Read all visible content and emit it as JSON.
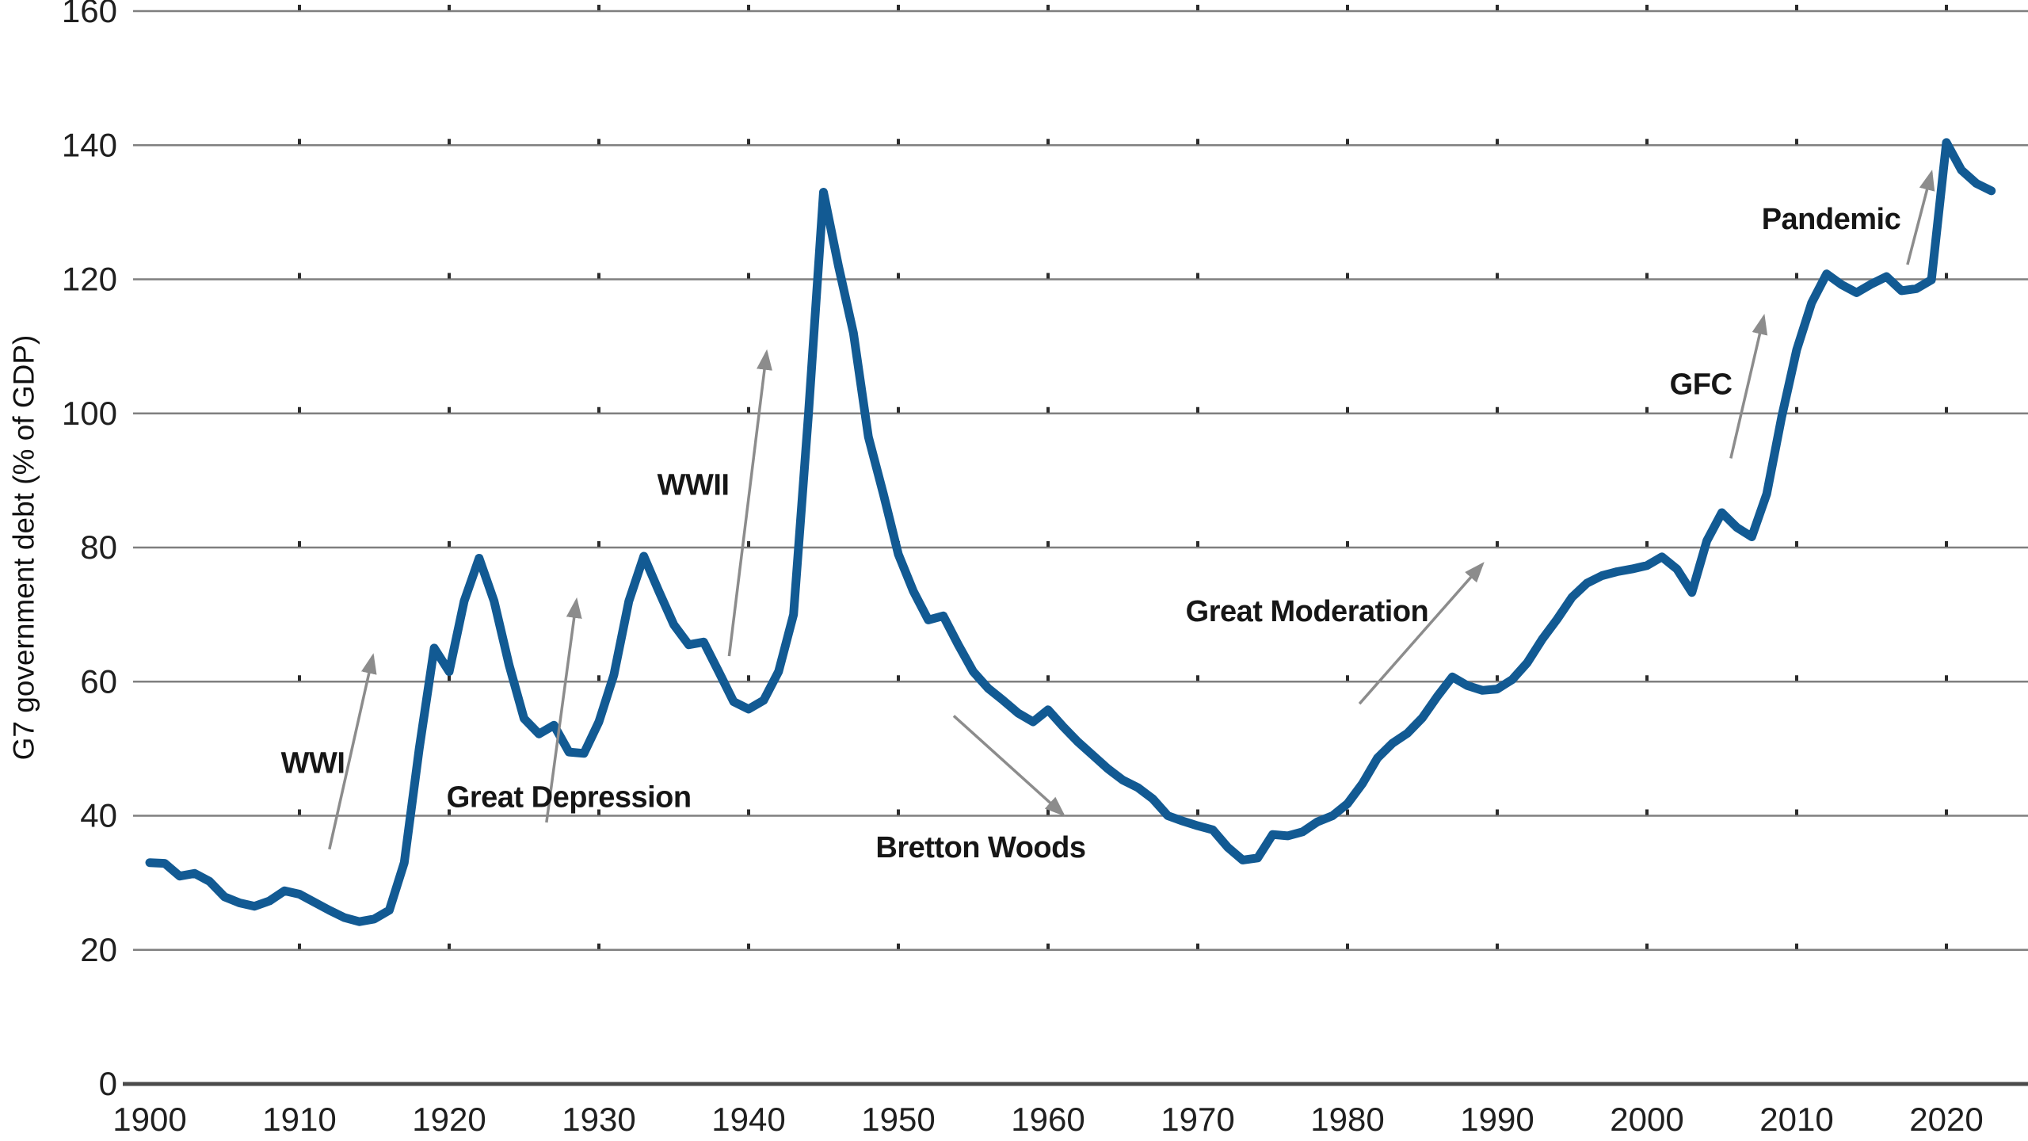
{
  "chart_data": {
    "type": "line",
    "title": "",
    "xlabel": "",
    "ylabel": "G7 government debt (% of GDP)",
    "legend": "none",
    "grid": true,
    "ylim": [
      0,
      160
    ],
    "yticks": [
      0,
      20,
      40,
      60,
      80,
      100,
      120,
      140,
      160
    ],
    "xticks": [
      1900,
      1910,
      1920,
      1930,
      1940,
      1950,
      1960,
      1970,
      1980,
      1990,
      2000,
      2010,
      2020
    ],
    "series": [
      {
        "name": "G7 government debt (% of GDP)",
        "color": "#125a93"
      }
    ],
    "x": [
      1900,
      1901,
      1902,
      1903,
      1904,
      1905,
      1906,
      1907,
      1908,
      1909,
      1910,
      1911,
      1912,
      1913,
      1914,
      1915,
      1916,
      1917,
      1918,
      1919,
      1920,
      1921,
      1922,
      1923,
      1924,
      1925,
      1926,
      1927,
      1928,
      1929,
      1930,
      1931,
      1932,
      1933,
      1934,
      1935,
      1936,
      1937,
      1938,
      1939,
      1940,
      1941,
      1942,
      1943,
      1944,
      1945,
      1946,
      1947,
      1948,
      1949,
      1950,
      1951,
      1952,
      1953,
      1954,
      1955,
      1956,
      1957,
      1958,
      1959,
      1960,
      1961,
      1962,
      1963,
      1964,
      1965,
      1966,
      1967,
      1968,
      1969,
      1970,
      1971,
      1972,
      1973,
      1974,
      1975,
      1976,
      1977,
      1978,
      1979,
      1980,
      1981,
      1982,
      1983,
      1984,
      1985,
      1986,
      1987,
      1988,
      1989,
      1990,
      1991,
      1992,
      1993,
      1994,
      1995,
      1996,
      1997,
      1998,
      1999,
      2000,
      2001,
      2002,
      2003,
      2004,
      2005,
      2006,
      2007,
      2008,
      2009,
      2010,
      2011,
      2012,
      2013,
      2014,
      2015,
      2016,
      2017,
      2018,
      2019,
      2020,
      2021,
      2022,
      2023
    ],
    "values": [
      33.0,
      32.9,
      31.0,
      31.4,
      30.2,
      27.9,
      27.0,
      26.5,
      27.3,
      28.8,
      28.3,
      27.1,
      25.9,
      24.8,
      24.2,
      24.6,
      25.9,
      33.0,
      50.0,
      65.0,
      61.5,
      72.0,
      78.4,
      72.0,
      62.5,
      54.5,
      52.2,
      53.5,
      49.5,
      49.3,
      54.0,
      61.0,
      72.0,
      78.7,
      73.5,
      68.5,
      65.5,
      65.9,
      61.5,
      57.0,
      55.9,
      57.2,
      61.5,
      70.0,
      100.0,
      133.0,
      122.0,
      112.0,
      96.5,
      88.0,
      79.0,
      73.5,
      69.2,
      69.8,
      65.5,
      61.5,
      59.0,
      57.2,
      55.3,
      54.0,
      55.8,
      53.3,
      51.0,
      49.0,
      47.0,
      45.3,
      44.2,
      42.5,
      40.0,
      39.2,
      38.5,
      37.9,
      35.3,
      33.4,
      33.7,
      37.2,
      37.0,
      37.6,
      39.1,
      40.0,
      41.8,
      44.8,
      48.6,
      50.8,
      52.3,
      54.6,
      57.8,
      60.7,
      59.4,
      58.7,
      58.9,
      60.3,
      62.8,
      66.3,
      69.3,
      72.6,
      74.7,
      75.8,
      76.4,
      76.8,
      77.3,
      78.6,
      76.8,
      73.3,
      81.0,
      85.2,
      83.0,
      81.6,
      88.0,
      99.5,
      109.5,
      116.5,
      120.8,
      119.2,
      118.0,
      119.3,
      120.4,
      118.3,
      118.6,
      119.9,
      140.4,
      136.3,
      134.3,
      133.2
    ],
    "colors": {
      "line": "#125a93",
      "grid": "#7f7f7f",
      "axis": "#4a4a4a",
      "text": "#1f1f1f",
      "annotation": "#161616",
      "arrow": "#8c8c8c",
      "tick_dot": "#2b2b2b",
      "background": "#ffffff"
    },
    "annotations": [
      {
        "label": "WWI",
        "year": 1910.9,
        "value": 47.8,
        "arrow": {
          "from": {
            "year": 1912.0,
            "value": 35.0
          },
          "to": {
            "year": 1914.9,
            "value": 63.8
          }
        }
      },
      {
        "label": "Great Depression",
        "year": 1928.0,
        "value": 42.7,
        "arrow": {
          "from": {
            "year": 1926.5,
            "value": 39.0
          },
          "to": {
            "year": 1928.5,
            "value": 72.1
          }
        }
      },
      {
        "label": "WWII",
        "year": 1936.3,
        "value": 89.3,
        "arrow": {
          "from": {
            "year": 1938.7,
            "value": 63.8
          },
          "to": {
            "year": 1941.2,
            "value": 109.1
          }
        }
      },
      {
        "label": "Bretton Woods",
        "year": 1955.5,
        "value": 35.2,
        "arrow": {
          "from": {
            "year": 1953.7,
            "value": 54.9
          },
          "to": {
            "year": 1961.0,
            "value": 40.2
          }
        }
      },
      {
        "label": "Great Moderation",
        "year": 1977.3,
        "value": 70.4,
        "arrow": {
          "from": {
            "year": 1980.8,
            "value": 56.7
          },
          "to": {
            "year": 1989.0,
            "value": 77.5
          }
        }
      },
      {
        "label": "GFC",
        "year": 2003.6,
        "value": 104.3,
        "arrow": {
          "from": {
            "year": 2005.6,
            "value": 93.3
          },
          "to": {
            "year": 2007.8,
            "value": 114.4
          }
        }
      },
      {
        "label": "Pandemic",
        "year": 2012.3,
        "value": 128.9,
        "arrow": {
          "from": {
            "year": 2017.4,
            "value": 122.2
          },
          "to": {
            "year": 2019.0,
            "value": 135.9
          }
        }
      }
    ]
  }
}
